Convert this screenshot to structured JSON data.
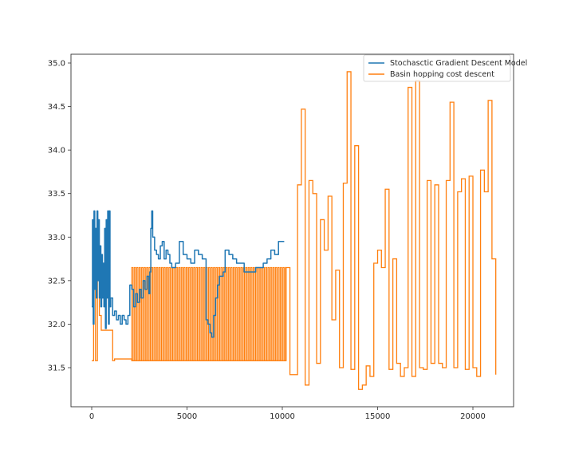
{
  "chart_data": {
    "type": "line",
    "title": "",
    "xlabel": "",
    "ylabel": "",
    "xlim": [
      -1050,
      22300
    ],
    "ylim": [
      31.1,
      35.15
    ],
    "xticks": [
      0,
      5000,
      10000,
      15000,
      20000
    ],
    "xtick_labels": [
      "0",
      "5000",
      "10000",
      "15000",
      "20000"
    ],
    "yticks": [
      31.5,
      32.0,
      32.5,
      33.0,
      33.5,
      34.0,
      34.5,
      35.0
    ],
    "ytick_labels": [
      "31.5",
      "32.0",
      "32.5",
      "33.0",
      "33.5",
      "34.0",
      "34.5",
      "35.0"
    ],
    "grid": false,
    "legend_position": "upper right",
    "legend": [
      "Stochasctic Gradient Descent Model",
      "Basin hopping cost descent"
    ],
    "colors": {
      "sgd": "#1f77b4",
      "basin": "#ff7f0e",
      "axes": "#333333",
      "text": "#262626"
    },
    "series": [
      {
        "name": "Stochasctic Gradient Descent Model",
        "color": "#1f77b4",
        "x": [
          0,
          40,
          80,
          120,
          160,
          200,
          240,
          280,
          320,
          360,
          400,
          440,
          480,
          520,
          560,
          600,
          640,
          680,
          720,
          760,
          800,
          840,
          880,
          920,
          960,
          1000,
          1100,
          1200,
          1300,
          1400,
          1500,
          1600,
          1700,
          1800,
          1900,
          2000,
          2100,
          2200,
          2300,
          2400,
          2500,
          2600,
          2700,
          2800,
          2900,
          3000,
          3050,
          3100,
          3150,
          3200,
          3300,
          3400,
          3500,
          3600,
          3700,
          3800,
          3900,
          4000,
          4100,
          4200,
          4400,
          4600,
          4800,
          5000,
          5200,
          5400,
          5600,
          5800,
          6000,
          6100,
          6200,
          6300,
          6400,
          6500,
          6600,
          6700,
          6800,
          6900,
          7000,
          7200,
          7400,
          7600,
          7800,
          8000,
          8200,
          8400,
          8600,
          8800,
          9000,
          9200,
          9400,
          9600,
          9800,
          10000,
          10100
        ],
        "y": [
          32.2,
          33.2,
          32.0,
          33.3,
          32.4,
          33.1,
          32.3,
          33.3,
          32.5,
          33.2,
          32.3,
          32.9,
          32.2,
          32.8,
          32.3,
          32.7,
          32.2,
          33.1,
          31.95,
          33.2,
          32.3,
          33.3,
          32.0,
          33.3,
          32.2,
          32.3,
          32.1,
          32.15,
          32.05,
          32.1,
          32.0,
          32.1,
          32.05,
          32.0,
          32.1,
          32.45,
          32.4,
          32.2,
          32.35,
          32.25,
          32.4,
          32.3,
          32.5,
          32.4,
          32.55,
          32.35,
          32.6,
          33.1,
          33.3,
          33.0,
          32.85,
          32.8,
          32.75,
          32.9,
          32.95,
          32.75,
          32.85,
          32.8,
          32.7,
          32.65,
          32.7,
          32.95,
          32.8,
          32.75,
          32.7,
          32.85,
          32.8,
          32.75,
          32.05,
          32.0,
          31.9,
          31.85,
          32.1,
          32.3,
          32.45,
          32.55,
          32.55,
          32.6,
          32.85,
          32.8,
          32.75,
          32.7,
          32.7,
          32.6,
          32.6,
          32.6,
          32.65,
          32.65,
          32.7,
          32.75,
          32.85,
          32.8,
          32.95,
          32.95,
          32.95
        ]
      },
      {
        "name": "Basin hopping cost descent",
        "color": "#ff7f0e",
        "x": [
          0,
          100,
          200,
          300,
          400,
          500,
          1000,
          1100,
          1200,
          2100,
          10200,
          10400,
          10600,
          10800,
          11000,
          11200,
          11400,
          11600,
          11800,
          12000,
          12200,
          12400,
          12600,
          12800,
          13000,
          13200,
          13400,
          13600,
          13800,
          14000,
          14200,
          14400,
          14600,
          14800,
          15000,
          15200,
          15400,
          15600,
          15800,
          16000,
          16200,
          16400,
          16600,
          16800,
          17000,
          17200,
          17400,
          17600,
          17800,
          18000,
          18200,
          18400,
          18600,
          18800,
          19000,
          19200,
          19400,
          19600,
          19800,
          20000,
          20200,
          20400,
          20600,
          20800,
          21000,
          21200
        ],
        "y": [
          31.58,
          32.65,
          31.58,
          32.65,
          32.1,
          31.93,
          31.93,
          31.58,
          31.6,
          31.58,
          32.65,
          31.42,
          31.42,
          33.6,
          34.47,
          31.3,
          33.65,
          33.5,
          31.55,
          33.2,
          32.85,
          33.47,
          32.05,
          32.62,
          31.5,
          33.62,
          34.9,
          31.48,
          34.05,
          31.25,
          31.3,
          31.52,
          31.4,
          32.7,
          32.85,
          32.65,
          33.55,
          31.48,
          32.75,
          31.55,
          31.4,
          31.5,
          34.72,
          31.4,
          34.8,
          31.5,
          31.48,
          33.65,
          31.55,
          33.6,
          31.55,
          31.5,
          33.65,
          34.55,
          31.5,
          33.52,
          33.67,
          31.48,
          33.7,
          31.5,
          31.4,
          33.77,
          33.52,
          34.57,
          32.75,
          31.42
        ]
      }
    ],
    "annotations": {
      "dense_oscillation_band": {
        "x_start": 2100,
        "x_end": 10200,
        "y_low": 31.58,
        "y_high": 32.65,
        "note": "orange curve alternates rapidly between ~31.58 and ~32.65"
      }
    }
  }
}
